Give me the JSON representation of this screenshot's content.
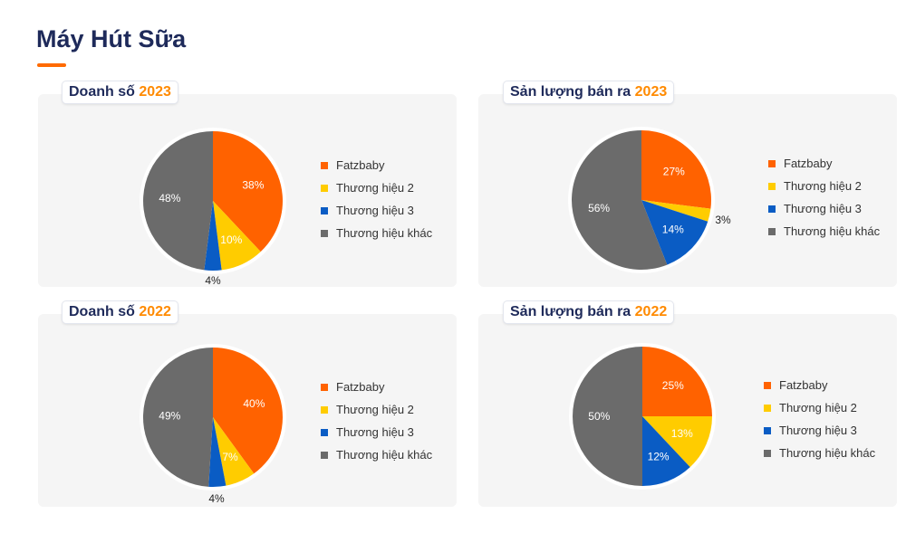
{
  "page": {
    "title": "Máy Hút Sữa"
  },
  "colors": {
    "Fatzbaby": "#ff6200",
    "Thương hiệu 2": "#ffcc00",
    "Thương hiệu 3": "#0a5cc4",
    "Thương hiệu khác": "#6b6b6b"
  },
  "chart_data": [
    {
      "type": "pie",
      "title": "Doanh số",
      "title_year": "2023",
      "legend_position": "right",
      "slices": [
        {
          "label": "Fatzbaby",
          "value": 38
        },
        {
          "label": "Thương hiệu 2",
          "value": 10
        },
        {
          "label": "Thương hiệu 3",
          "value": 4
        },
        {
          "label": "Thương hiệu khác",
          "value": 48
        }
      ],
      "data_labels": [
        "38%",
        "10%",
        "4%",
        "48%"
      ]
    },
    {
      "type": "pie",
      "title": "Sản lượng bán ra",
      "title_year": "2023",
      "legend_position": "right",
      "slices": [
        {
          "label": "Fatzbaby",
          "value": 27
        },
        {
          "label": "Thương hiệu 2",
          "value": 3
        },
        {
          "label": "Thương hiệu 3",
          "value": 14
        },
        {
          "label": "Thương hiệu khác",
          "value": 56
        }
      ],
      "data_labels": [
        "27%",
        "3%",
        "14%",
        "56%"
      ]
    },
    {
      "type": "pie",
      "title": "Doanh số",
      "title_year": "2022",
      "legend_position": "right",
      "slices": [
        {
          "label": "Fatzbaby",
          "value": 40
        },
        {
          "label": "Thương hiệu 2",
          "value": 7
        },
        {
          "label": "Thương hiệu 3",
          "value": 4
        },
        {
          "label": "Thương hiệu khác",
          "value": 49
        }
      ],
      "data_labels": [
        "40%",
        "7%",
        "4%",
        "49%"
      ]
    },
    {
      "type": "pie",
      "title": "Sản lượng bán ra",
      "title_year": "2022",
      "legend_position": "right",
      "slices": [
        {
          "label": "Fatzbaby",
          "value": 25
        },
        {
          "label": "Thương hiệu 2",
          "value": 13
        },
        {
          "label": "Thương hiệu 3",
          "value": 12
        },
        {
          "label": "Thương hiệu khác",
          "value": 50
        }
      ],
      "data_labels": [
        "25%",
        "13%",
        "12%",
        "50%"
      ]
    }
  ]
}
